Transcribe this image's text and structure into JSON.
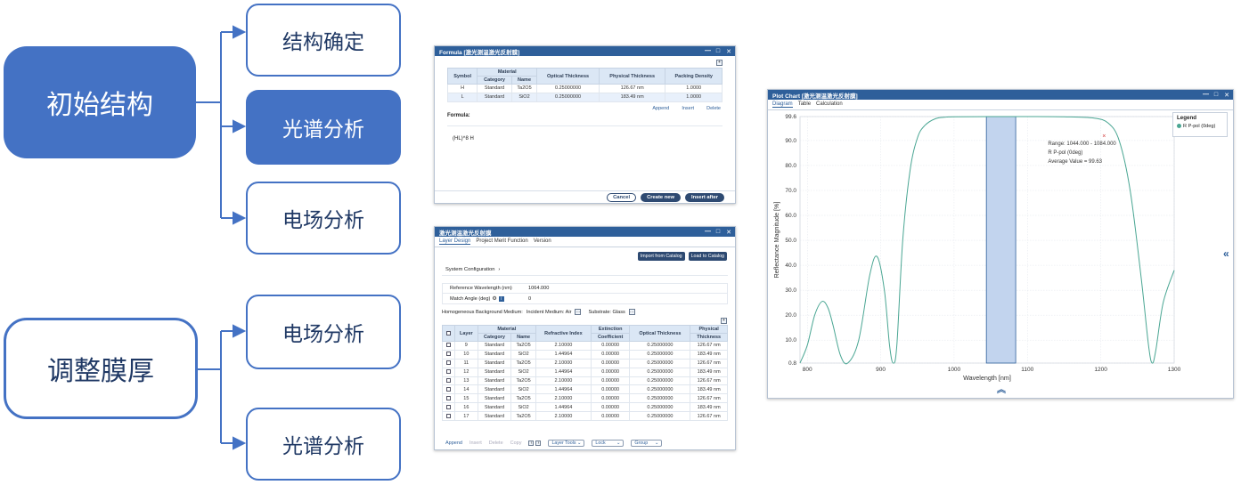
{
  "flow": {
    "initial": "初始结构",
    "adjust": "调整膜厚",
    "branch_top": [
      "结构确定",
      "光谱分析",
      "电场分析"
    ],
    "branch_bottom": [
      "电场分析",
      "光谱分析"
    ]
  },
  "formula_window": {
    "title": "Formula [激光测温激光反射膜]",
    "headers": {
      "symbol": "Symbol",
      "material": "Material",
      "category": "Category",
      "name": "Name",
      "optical": "Optical Thickness",
      "physical": "Physical Thickness",
      "packing": "Packing Density"
    },
    "rows": [
      {
        "symbol": "H",
        "category": "Standard",
        "name": "Ta2O5",
        "optical": "0.25000000",
        "physical": "126.67 nm",
        "packing": "1.0000"
      },
      {
        "symbol": "L",
        "category": "Standard",
        "name": "SiO2",
        "optical": "0.25000000",
        "physical": "183.49 nm",
        "packing": "1.0000"
      }
    ],
    "actions": [
      "Append",
      "Insert",
      "Delete"
    ],
    "formula_label": "Formula:",
    "formula_value": "(HL)^8 H",
    "buttons": {
      "cancel": "Cancel",
      "create": "Create new",
      "insert_after": "Insert after"
    }
  },
  "layer_window": {
    "title": "激光测温激光反射膜",
    "tabs": [
      "Layer Design",
      "Project Merit Function",
      "Version"
    ],
    "import_btn": "Import from Catalog",
    "load_btn": "Load to Catalog",
    "system_config": "System Configuration",
    "ref_wavelength_label": "Reference Wavelength (nm)",
    "ref_wavelength_value": "1064.000",
    "match_angle_label": "Match Angle (deg)",
    "match_angle_value": "0",
    "background_label": "Homogeneous Background Medium:",
    "incident_label": "Incident Medium: Air",
    "substrate_label": "Substrate: Glass",
    "headers": {
      "layer": "Layer",
      "material": "Material",
      "category": "Category",
      "name": "Name",
      "ri": "Refractive Index",
      "ext1": "Extinction",
      "ext2": "Coefficient",
      "optical": "Optical Thickness",
      "phys1": "Physical",
      "phys2": "Thickness"
    },
    "rows": [
      {
        "layer": "9",
        "category": "Standard",
        "name": "Ta2O5",
        "ri": "2.10000",
        "ext": "0.00000",
        "optical": "0.25000000",
        "phys": "126.67 nm"
      },
      {
        "layer": "10",
        "category": "Standard",
        "name": "SiO2",
        "ri": "1.44964",
        "ext": "0.00000",
        "optical": "0.25000000",
        "phys": "183.49 nm"
      },
      {
        "layer": "11",
        "category": "Standard",
        "name": "Ta2O5",
        "ri": "2.10000",
        "ext": "0.00000",
        "optical": "0.25000000",
        "phys": "126.67 nm"
      },
      {
        "layer": "12",
        "category": "Standard",
        "name": "SiO2",
        "ri": "1.44964",
        "ext": "0.00000",
        "optical": "0.25000000",
        "phys": "183.49 nm"
      },
      {
        "layer": "13",
        "category": "Standard",
        "name": "Ta2O5",
        "ri": "2.10000",
        "ext": "0.00000",
        "optical": "0.25000000",
        "phys": "126.67 nm"
      },
      {
        "layer": "14",
        "category": "Standard",
        "name": "SiO2",
        "ri": "1.44964",
        "ext": "0.00000",
        "optical": "0.25000000",
        "phys": "183.49 nm"
      },
      {
        "layer": "15",
        "category": "Standard",
        "name": "Ta2O5",
        "ri": "2.10000",
        "ext": "0.00000",
        "optical": "0.25000000",
        "phys": "126.67 nm"
      },
      {
        "layer": "16",
        "category": "Standard",
        "name": "SiO2",
        "ri": "1.44964",
        "ext": "0.00000",
        "optical": "0.25000000",
        "phys": "183.49 nm"
      },
      {
        "layer": "17",
        "category": "Standard",
        "name": "Ta2O5",
        "ri": "2.10000",
        "ext": "0.00000",
        "optical": "0.25000000",
        "phys": "126.67 nm"
      }
    ],
    "footer": {
      "append": "Append",
      "insert": "Insert",
      "delete": "Delete",
      "copy": "Copy",
      "layer_tools": "Layer Tools",
      "lock": "Lock",
      "group": "Group"
    }
  },
  "plot_window": {
    "title": "Plot Chart [激光测温激光反射膜]",
    "tabs": [
      "Diagram",
      "Table",
      "Calculation"
    ],
    "legend_title": "Legend",
    "legend_item": "R P-pol (0deg)",
    "annotation": [
      "Range: 1044.000 - 1084.000",
      "R P-pol (0deg)",
      "Average Value = 99.63"
    ]
  },
  "chart_data": {
    "type": "line",
    "title": "",
    "xlabel": "Wavelength [nm]",
    "ylabel": "Reflectance Magnitude [%]",
    "xlim": [
      790,
      1300
    ],
    "ylim": [
      0.8,
      99.6
    ],
    "xticks": [
      800,
      900,
      1000,
      1100,
      1200,
      1300
    ],
    "yticks": [
      0.8,
      10.0,
      20.0,
      30.0,
      40.0,
      50.0,
      60.0,
      70.0,
      80.0,
      90.0,
      99.6
    ],
    "ytick_labels": [
      "0.8",
      "10.0",
      "20.0",
      "30.0",
      "40.0",
      "50.0",
      "60.0",
      "70.0",
      "80.0",
      "90.0",
      "99.6"
    ],
    "grid": true,
    "legend": "top-right",
    "highlight_range": [
      1044,
      1084
    ],
    "series": [
      {
        "name": "R P-pol (0deg)",
        "color": "#4aa693",
        "x": [
          790,
          800,
          810,
          820,
          828,
          835,
          845,
          855,
          870,
          885,
          895,
          905,
          912,
          917,
          922,
          930,
          940,
          950,
          960,
          975,
          990,
          1000,
          1050,
          1100,
          1150,
          1190,
          1210,
          1225,
          1240,
          1255,
          1265,
          1270,
          1275,
          1285,
          1300
        ],
        "y": [
          0.8,
          8,
          20,
          25.5,
          23,
          16,
          4,
          0.8,
          10,
          36,
          43.5,
          30,
          8,
          0.8,
          8,
          50,
          78,
          91,
          96,
          98.8,
          99.4,
          99.5,
          99.6,
          99.6,
          99.5,
          99,
          97,
          90,
          70,
          35,
          8,
          0.8,
          6,
          25,
          38
        ]
      }
    ]
  }
}
